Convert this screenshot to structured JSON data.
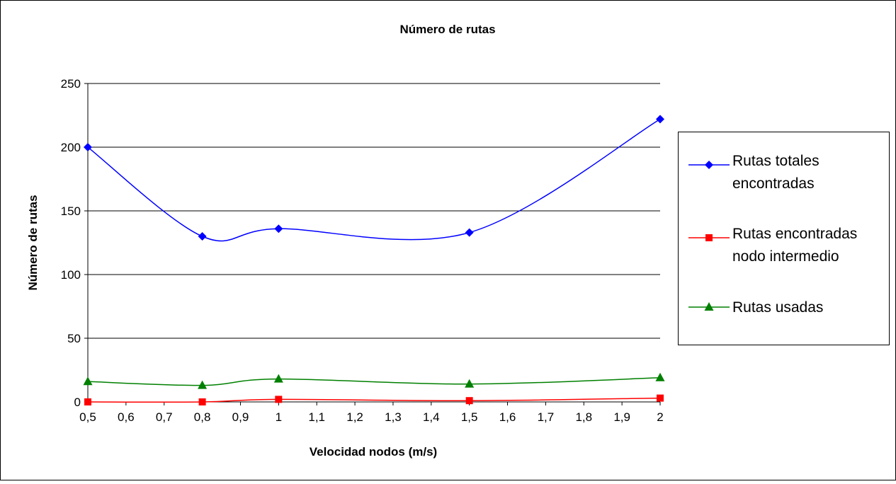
{
  "chart_data": {
    "type": "line",
    "title": "Número de rutas",
    "xlabel": "Velocidad nodos (m/s)",
    "ylabel": "Número de rutas",
    "xlim": [
      0.5,
      2
    ],
    "ylim": [
      0,
      250
    ],
    "x_ticks": [
      "0,5",
      "0,6",
      "0,7",
      "0,8",
      "0,9",
      "1",
      "1,1",
      "1,2",
      "1,3",
      "1,4",
      "1,5",
      "1,6",
      "1,7",
      "1,8",
      "1,9",
      "2"
    ],
    "x_tick_values": [
      0.5,
      0.6,
      0.7,
      0.8,
      0.9,
      1.0,
      1.1,
      1.2,
      1.3,
      1.4,
      1.5,
      1.6,
      1.7,
      1.8,
      1.9,
      2.0
    ],
    "y_ticks": [
      "0",
      "50",
      "100",
      "150",
      "200",
      "250"
    ],
    "y_tick_values": [
      0,
      50,
      100,
      150,
      200,
      250
    ],
    "grid": "horizontal",
    "legend_position": "right",
    "x": [
      0.5,
      0.8,
      1.0,
      1.5,
      2.0
    ],
    "series": [
      {
        "name": "Rutas totales encontradas",
        "legend_lines": [
          "Rutas totales",
          "encontradas"
        ],
        "values": [
          200,
          130,
          136,
          133,
          222
        ],
        "color": "#0000ff",
        "marker": "diamond"
      },
      {
        "name": "Rutas encontradas nodo intermedio",
        "legend_lines": [
          "Rutas encontradas",
          "nodo intermedio"
        ],
        "values": [
          0,
          0,
          2,
          1,
          3
        ],
        "color": "#ff0000",
        "marker": "square"
      },
      {
        "name": "Rutas usadas",
        "legend_lines": [
          "Rutas usadas"
        ],
        "values": [
          16,
          13,
          18,
          14,
          19
        ],
        "color": "#008000",
        "marker": "triangle"
      }
    ]
  }
}
